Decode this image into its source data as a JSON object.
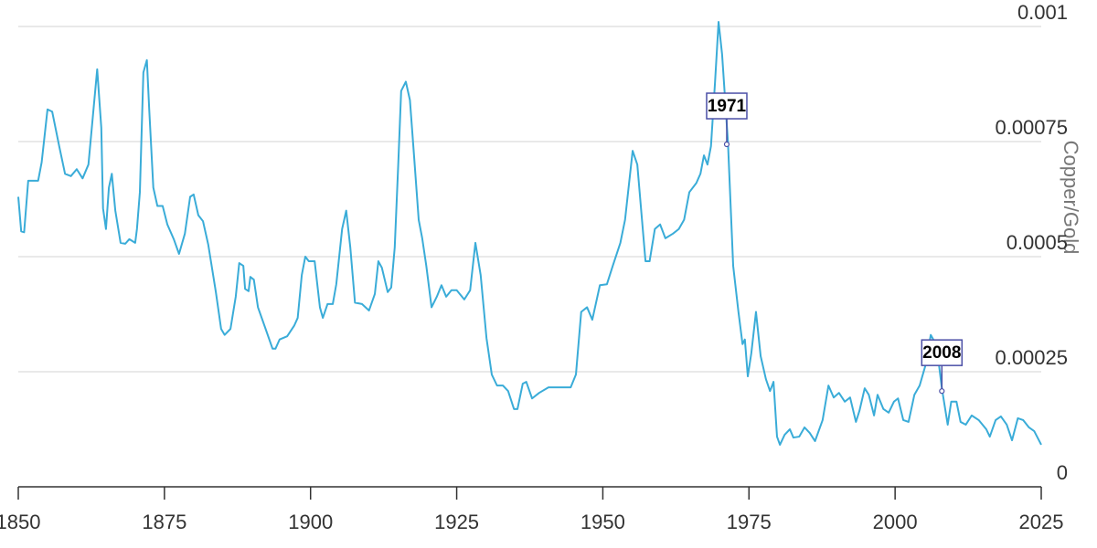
{
  "chart_data": {
    "type": "line",
    "y_axis_label": "Copper/Gold",
    "color": "#3aacd8",
    "grid": true,
    "xlim": [
      1850,
      2025
    ],
    "ylim": [
      0,
      0.001
    ],
    "xticks": [
      1850,
      1875,
      1900,
      1925,
      1950,
      1975,
      2000,
      2025
    ],
    "yticks": [
      0,
      0.00025,
      0.0005,
      0.00075,
      0.001
    ],
    "x": [
      1850,
      1850.5,
      1851,
      1851.7,
      1853.4,
      1854,
      1855,
      1855.8,
      1857,
      1858,
      1859,
      1860,
      1861,
      1862,
      1863.5,
      1864.2,
      1864.5,
      1865,
      1865.5,
      1866,
      1866.6,
      1867.5,
      1868.3,
      1869,
      1870,
      1870.3,
      1870.8,
      1871.4,
      1872,
      1872.4,
      1873.1,
      1873.8,
      1874.7,
      1875.5,
      1876.6,
      1877.5,
      1878.5,
      1879.4,
      1880,
      1880.8,
      1881.6,
      1882.5,
      1883.8,
      1884.7,
      1885.3,
      1886.3,
      1887.2,
      1887.8,
      1888.5,
      1888.8,
      1889.4,
      1889.7,
      1890.3,
      1891,
      1892.2,
      1893.5,
      1894,
      1894.7,
      1896,
      1897.2,
      1897.8,
      1898.5,
      1899.1,
      1899.7,
      1900.7,
      1901.6,
      1902.1,
      1902.9,
      1903.8,
      1904.4,
      1905.4,
      1906.1,
      1906.8,
      1907.6,
      1908.8,
      1910,
      1911,
      1911.6,
      1912.2,
      1913.2,
      1913.8,
      1914.4,
      1915,
      1915.5,
      1916.3,
      1917,
      1917.7,
      1918.5,
      1919.1,
      1919.8,
      1920.7,
      1921.6,
      1922.4,
      1923.2,
      1924.1,
      1925,
      1926.3,
      1927.3,
      1928.2,
      1929.1,
      1930.1,
      1931,
      1931.9,
      1932.9,
      1933.8,
      1934.8,
      1935.4,
      1936.3,
      1936.9,
      1937.9,
      1939.1,
      1940.7,
      1944.5,
      1945.4,
      1946.3,
      1947.3,
      1948.2,
      1949.5,
      1950.7,
      1951.7,
      1953,
      1953.8,
      1955.1,
      1955.9,
      1956.7,
      1957.3,
      1958,
      1958.9,
      1959.8,
      1960.7,
      1962,
      1963,
      1963.9,
      1964.8,
      1966,
      1966.7,
      1967.3,
      1967.9,
      1968.5,
      1969.2,
      1969.8,
      1970.4,
      1971.4,
      1972.3,
      1973.2,
      1973.9,
      1974.3,
      1974.8,
      1975.4,
      1976.2,
      1977,
      1977.9,
      1978.6,
      1979.2,
      1979.8,
      1980.3,
      1981.1,
      1982,
      1982.6,
      1983.6,
      1984.5,
      1985.4,
      1986.3,
      1987.6,
      1988.6,
      1989.5,
      1990.4,
      1991.4,
      1992.3,
      1993.3,
      1993.9,
      1994.8,
      1995.5,
      1996.4,
      1997,
      1998,
      1998.9,
      1999.8,
      2000.5,
      2001.4,
      2002.3,
      2003.3,
      2004.2,
      2005.2,
      2006.1,
      2007.1,
      2008,
      2009,
      2009.6,
      2010.5,
      2011.2,
      2012.1,
      2013.1,
      2014.3,
      2015.6,
      2016.2,
      2017.2,
      2018.1,
      2019.1,
      2020,
      2021,
      2021.9,
      2022.9,
      2023.8,
      2025
    ],
    "values": [
      0.00063,
      0.000555,
      0.000553,
      0.000665,
      0.000665,
      0.000705,
      0.00082,
      0.000815,
      0.00074,
      0.00068,
      0.000675,
      0.00069,
      0.00067,
      0.0007,
      0.000907,
      0.00078,
      0.000605,
      0.00056,
      0.00065,
      0.00068,
      0.0006,
      0.00053,
      0.000528,
      0.000538,
      0.00053,
      0.00056,
      0.00064,
      0.0009,
      0.000927,
      0.00082,
      0.00065,
      0.00061,
      0.00061,
      0.00057,
      0.000538,
      0.000506,
      0.00055,
      0.00063,
      0.000635,
      0.00059,
      0.000577,
      0.000526,
      0.000423,
      0.000343,
      0.00033,
      0.000343,
      0.000413,
      0.000486,
      0.00048,
      0.00043,
      0.000425,
      0.000456,
      0.00045,
      0.00039,
      0.000347,
      0.0003,
      0.0003,
      0.00032,
      0.000327,
      0.00035,
      0.000367,
      0.00046,
      0.0005,
      0.00049,
      0.00049,
      0.00039,
      0.000367,
      0.000397,
      0.000397,
      0.00044,
      0.00056,
      0.0006,
      0.00052,
      0.0004,
      0.000397,
      0.000383,
      0.000419,
      0.00049,
      0.000476,
      0.000423,
      0.000433,
      0.00052,
      0.0007,
      0.00086,
      0.00088,
      0.00084,
      0.00072,
      0.00058,
      0.00054,
      0.00048,
      0.00039,
      0.000413,
      0.000438,
      0.000413,
      0.000427,
      0.000427,
      0.000407,
      0.000427,
      0.00053,
      0.00046,
      0.000323,
      0.000244,
      0.00022,
      0.00022,
      0.000208,
      0.000169,
      0.000169,
      0.000224,
      0.000228,
      0.000192,
      0.000204,
      0.000216,
      0.000216,
      0.000244,
      0.00038,
      0.00039,
      0.000363,
      0.000438,
      0.00044,
      0.00048,
      0.00053,
      0.00058,
      0.00073,
      0.0007,
      0.00058,
      0.00049,
      0.00049,
      0.00056,
      0.00057,
      0.00054,
      0.00055,
      0.00056,
      0.00058,
      0.00064,
      0.00066,
      0.00068,
      0.00072,
      0.0007,
      0.00074,
      0.00088,
      0.00101,
      0.00094,
      0.00075,
      0.00048,
      0.00038,
      0.00031,
      0.00032,
      0.00024,
      0.00029,
      0.00038,
      0.000284,
      0.000234,
      0.000208,
      0.000228,
      0.000109,
      9.13e-05,
      0.000113,
      0.000125,
      0.000107,
      0.000109,
      0.000129,
      0.000117,
      9.92e-05,
      0.000145,
      0.00022,
      0.000194,
      0.000204,
      0.000185,
      0.000194,
      0.000141,
      0.000165,
      0.000214,
      0.0002,
      0.000155,
      0.0002,
      0.000169,
      0.000161,
      0.000185,
      0.000192,
      0.000145,
      0.000141,
      0.0002,
      0.00022,
      0.000264,
      0.00033,
      0.000307,
      0.000214,
      0.000135,
      0.000185,
      0.000185,
      0.000141,
      0.000135,
      0.000155,
      0.000145,
      0.000125,
      0.000109,
      0.000145,
      0.000153,
      0.000135,
      0.000101,
      0.000149,
      0.000145,
      0.000129,
      0.000121,
      9.13e-05
    ],
    "annotations": [
      {
        "label": "1971",
        "x": 1971.2,
        "y": 0.000744
      },
      {
        "label": "2008",
        "x": 2008,
        "y": 0.000208
      }
    ]
  }
}
